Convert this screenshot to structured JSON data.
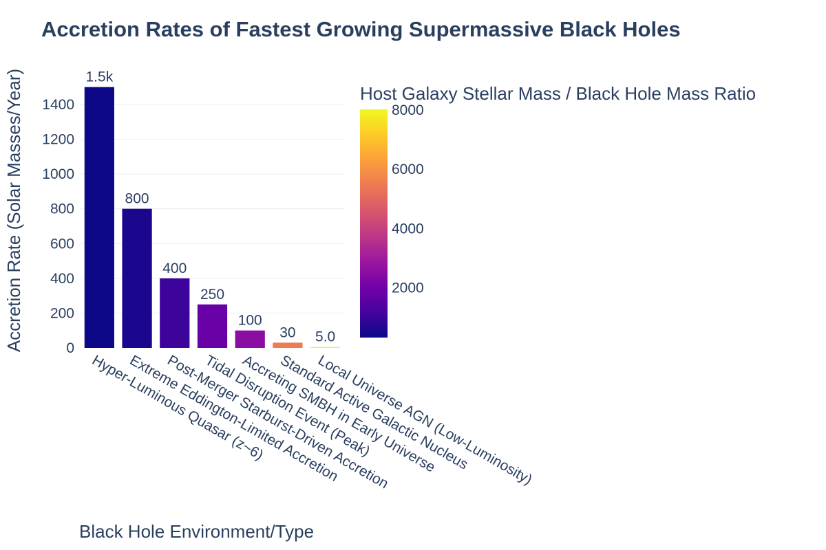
{
  "chart_data": {
    "type": "bar",
    "title": "Accretion Rates of Fastest Growing Supermassive Black Holes",
    "xlabel": "Black Hole Environment/Type",
    "ylabel": "Accretion Rate (Solar Masses/Year)",
    "ylim": [
      0,
      1500
    ],
    "yticks": [
      0,
      200,
      400,
      600,
      800,
      1000,
      1200,
      1400
    ],
    "grid": true,
    "categories": [
      "Hyper-Luminous Quasar (z~6)",
      "Extreme Eddington-Limited Accretion",
      "Post-Merger Starburst-Driven Accretion",
      "Tidal Disruption Event (Peak)",
      "Accreting SMBH in Early Universe",
      "Standard Active Galactic Nucleus",
      "Local Universe AGN (Low-Luminosity)"
    ],
    "values": [
      1500,
      800,
      400,
      250,
      100,
      30,
      5
    ],
    "value_labels": [
      "1.5k",
      "800",
      "400",
      "250",
      "100",
      "30",
      "5.0"
    ],
    "colorbar": {
      "title": "Host Galaxy Stellar Mass / Black Hole Mass Ratio",
      "range": [
        300,
        8000
      ],
      "ticks": [
        2000,
        4000,
        6000,
        8000
      ],
      "colorscale": [
        "#0d0887",
        "#46039f",
        "#7201a8",
        "#9c179e",
        "#bd3786",
        "#d8576b",
        "#ed7953",
        "#fb9f3a",
        "#fdca26",
        "#f0f921"
      ]
    },
    "color_values": [
      300,
      500,
      1000,
      1800,
      2500,
      5500,
      8000
    ]
  }
}
